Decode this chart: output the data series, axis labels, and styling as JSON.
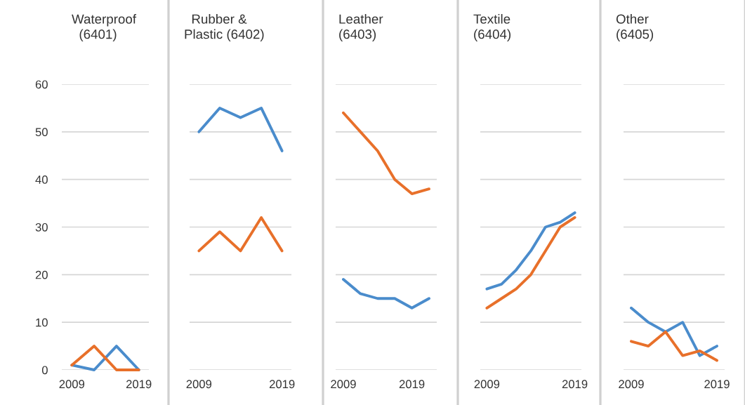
{
  "chart_data": [
    {
      "type": "line",
      "title": "Waterproof\n  (6401)",
      "categories": [
        "2009",
        null,
        null,
        "2019"
      ],
      "ylim": [
        0,
        60
      ],
      "yticks": [
        0,
        10,
        20,
        30,
        40,
        50,
        60
      ],
      "grid": "y",
      "series": [
        {
          "color": "#4a8ccc",
          "values": [
            1,
            0,
            5,
            0
          ]
        },
        {
          "color": "#e8702a",
          "values": [
            1,
            5,
            0,
            0
          ]
        }
      ]
    },
    {
      "type": "line",
      "title": "  Rubber &\nPlastic (6402)",
      "categories": [
        "2009",
        null,
        null,
        null,
        "2019"
      ],
      "ylim": [
        0,
        60
      ],
      "yticks": [
        0,
        10,
        20,
        30,
        40,
        50,
        60
      ],
      "grid": "y",
      "tick_labels": "x",
      "series": [
        {
          "color": "#4a8ccc",
          "values": [
            50,
            55,
            53,
            55,
            46
          ]
        },
        {
          "color": "#e8702a",
          "values": [
            25,
            29,
            25,
            32,
            25
          ]
        }
      ]
    },
    {
      "type": "line",
      "title": "Leather\n(6403)",
      "categories": [
        "2009",
        null,
        null,
        null,
        "2019",
        null
      ],
      "ylim": [
        0,
        60
      ],
      "yticks": [
        0,
        10,
        20,
        30,
        40,
        50,
        60
      ],
      "grid": "y",
      "tick_labels": "x",
      "series": [
        {
          "color": "#4a8ccc",
          "values": [
            19,
            16,
            15,
            15,
            13,
            15
          ]
        },
        {
          "color": "#e8702a",
          "values": [
            54,
            50,
            46,
            40,
            37,
            38
          ]
        }
      ]
    },
    {
      "type": "line",
      "title": "Textile\n(6404)",
      "categories": [
        "2009",
        null,
        null,
        null,
        null,
        null,
        "2019"
      ],
      "ylim": [
        0,
        60
      ],
      "yticks": [
        0,
        10,
        20,
        30,
        40,
        50,
        60
      ],
      "grid": "y",
      "tick_labels": "x",
      "series": [
        {
          "color": "#4a8ccc",
          "values": [
            17,
            18,
            21,
            25,
            30,
            31,
            33
          ]
        },
        {
          "color": "#e8702a",
          "values": [
            13,
            15,
            17,
            20,
            25,
            30,
            32
          ]
        }
      ]
    },
    {
      "type": "line",
      "title": "Other\n(6405)",
      "categories": [
        "2009",
        null,
        null,
        null,
        null,
        "2019"
      ],
      "ylim": [
        0,
        60
      ],
      "yticks": [
        0,
        10,
        20,
        30,
        40,
        50,
        60
      ],
      "grid": "y",
      "tick_labels": "x",
      "series": [
        {
          "color": "#4a8ccc",
          "values": [
            13,
            10,
            8,
            10,
            3,
            5
          ]
        },
        {
          "color": "#e8702a",
          "values": [
            6,
            5,
            8,
            3,
            4,
            2
          ]
        }
      ]
    }
  ]
}
